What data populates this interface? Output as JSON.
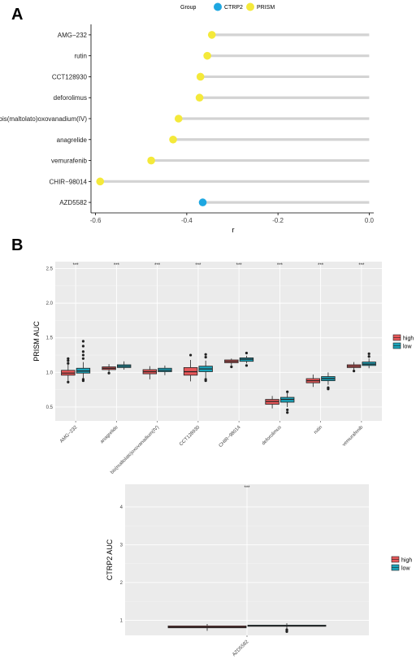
{
  "panel_a_label": "A",
  "panel_b_label": "B",
  "colors": {
    "ctrp2": "#1ea7e1",
    "prism": "#f4e93a",
    "high": "#e8585a",
    "low": "#1ba3b9",
    "panel_bg": "#ebebeb",
    "lollipop_line": "#d3d3d3"
  },
  "chart_data": [
    {
      "type": "lollipop",
      "legend": {
        "title": "Group",
        "items": [
          "CTRP2",
          "PRISM"
        ],
        "placement": "top"
      },
      "xlabel": "r",
      "xlim": [
        -0.61,
        0.01
      ],
      "xticks": [
        "-0.6",
        "-0.4",
        "-0.2",
        "0.0"
      ],
      "xtick_values": [
        -0.6,
        -0.4,
        -0.2,
        0.0
      ],
      "points": [
        {
          "label": "AMG−232",
          "r": -0.345,
          "group": "PRISM"
        },
        {
          "label": "rutin",
          "r": -0.355,
          "group": "PRISM"
        },
        {
          "label": "CCT128930",
          "r": -0.37,
          "group": "PRISM"
        },
        {
          "label": "deforolimus",
          "r": -0.372,
          "group": "PRISM"
        },
        {
          "label": "bis(maltolato)oxovanadium(IV)",
          "r": -0.418,
          "group": "PRISM"
        },
        {
          "label": "anagrelide",
          "r": -0.43,
          "group": "PRISM"
        },
        {
          "label": "vemurafenib",
          "r": -0.478,
          "group": "PRISM"
        },
        {
          "label": "CHIR−98014",
          "r": -0.59,
          "group": "PRISM"
        },
        {
          "label": "AZD5582",
          "r": -0.365,
          "group": "CTRP2"
        }
      ]
    },
    {
      "type": "box",
      "ylabel": "PRISM AUC",
      "ylim": [
        0.3,
        2.6
      ],
      "yticks": [
        "0.5",
        "1.0",
        "1.5",
        "2.0",
        "2.5"
      ],
      "ytick_values": [
        0.5,
        1.0,
        1.5,
        2.0,
        2.5
      ],
      "legend": {
        "items": [
          "high",
          "low"
        ],
        "placement": "right"
      },
      "categories": [
        "AMG−232",
        "anagrelide",
        "bis(maltolato)oxovanadium(IV)",
        "CCT128930",
        "CHIR−98014",
        "deforolimus",
        "rutin",
        "vemurafenib"
      ],
      "significance": [
        "***",
        "***",
        "***",
        "***",
        "***",
        "***",
        "***",
        "***"
      ],
      "series": [
        {
          "name": "high",
          "boxes": [
            {
              "min": 0.88,
              "q1": 0.96,
              "median": 0.99,
              "q3": 1.03,
              "max": 1.11,
              "outliers": [
                1.13,
                1.17,
                1.2,
                0.86
              ]
            },
            {
              "min": 1.0,
              "q1": 1.04,
              "median": 1.06,
              "q3": 1.08,
              "max": 1.12,
              "outliers": [
                0.99
              ]
            },
            {
              "min": 0.9,
              "q1": 0.98,
              "median": 1.01,
              "q3": 1.04,
              "max": 1.09,
              "outliers": []
            },
            {
              "min": 0.87,
              "q1": 0.96,
              "median": 1.01,
              "q3": 1.07,
              "max": 1.18,
              "outliers": [
                1.25
              ]
            },
            {
              "min": 1.1,
              "q1": 1.14,
              "median": 1.16,
              "q3": 1.18,
              "max": 1.2,
              "outliers": [
                1.08
              ]
            },
            {
              "min": 0.48,
              "q1": 0.54,
              "median": 0.58,
              "q3": 0.61,
              "max": 0.66,
              "outliers": []
            },
            {
              "min": 0.79,
              "q1": 0.85,
              "median": 0.88,
              "q3": 0.91,
              "max": 0.97,
              "outliers": []
            },
            {
              "min": 1.03,
              "q1": 1.07,
              "median": 1.09,
              "q3": 1.11,
              "max": 1.15,
              "outliers": [
                1.02
              ]
            }
          ]
        },
        {
          "name": "low",
          "boxes": [
            {
              "min": 0.91,
              "q1": 0.99,
              "median": 1.02,
              "q3": 1.06,
              "max": 1.15,
              "outliers": [
                1.2,
                1.25,
                1.3,
                1.38,
                1.45,
                0.88,
                0.9
              ]
            },
            {
              "min": 1.04,
              "q1": 1.07,
              "median": 1.09,
              "q3": 1.11,
              "max": 1.16,
              "outliers": []
            },
            {
              "min": 0.96,
              "q1": 1.01,
              "median": 1.03,
              "q3": 1.06,
              "max": 1.1,
              "outliers": []
            },
            {
              "min": 0.92,
              "q1": 1.01,
              "median": 1.05,
              "q3": 1.09,
              "max": 1.17,
              "outliers": [
                1.22,
                1.26,
                0.88,
                0.9
              ]
            },
            {
              "min": 1.13,
              "q1": 1.16,
              "median": 1.19,
              "q3": 1.21,
              "max": 1.24,
              "outliers": [
                1.28,
                1.1
              ]
            },
            {
              "min": 0.5,
              "q1": 0.57,
              "median": 0.61,
              "q3": 0.64,
              "max": 0.7,
              "outliers": [
                0.42,
                0.46,
                0.72
              ]
            },
            {
              "min": 0.82,
              "q1": 0.88,
              "median": 0.91,
              "q3": 0.94,
              "max": 1.0,
              "outliers": [
                0.76,
                0.78
              ]
            },
            {
              "min": 1.06,
              "q1": 1.1,
              "median": 1.12,
              "q3": 1.15,
              "max": 1.2,
              "outliers": [
                1.23,
                1.27
              ]
            }
          ]
        }
      ]
    },
    {
      "type": "box",
      "ylabel": "CTRP2 AUC",
      "ylim": [
        0.6,
        4.6
      ],
      "yticks": [
        "1",
        "2",
        "3",
        "4"
      ],
      "ytick_values": [
        1,
        2,
        3,
        4
      ],
      "legend": {
        "items": [
          "high",
          "low"
        ],
        "placement": "right"
      },
      "categories": [
        "AZD5582"
      ],
      "significance": [
        "***"
      ],
      "series": [
        {
          "name": "high",
          "boxes": [
            {
              "min": 0.72,
              "q1": 0.8,
              "median": 0.82,
              "q3": 0.85,
              "max": 0.9,
              "outliers": []
            }
          ]
        },
        {
          "name": "low",
          "boxes": [
            {
              "min": 0.78,
              "q1": 0.84,
              "median": 0.85,
              "q3": 0.87,
              "max": 0.92,
              "outliers": [
                0.7,
                0.73,
                0.75
              ]
            }
          ]
        }
      ]
    }
  ]
}
